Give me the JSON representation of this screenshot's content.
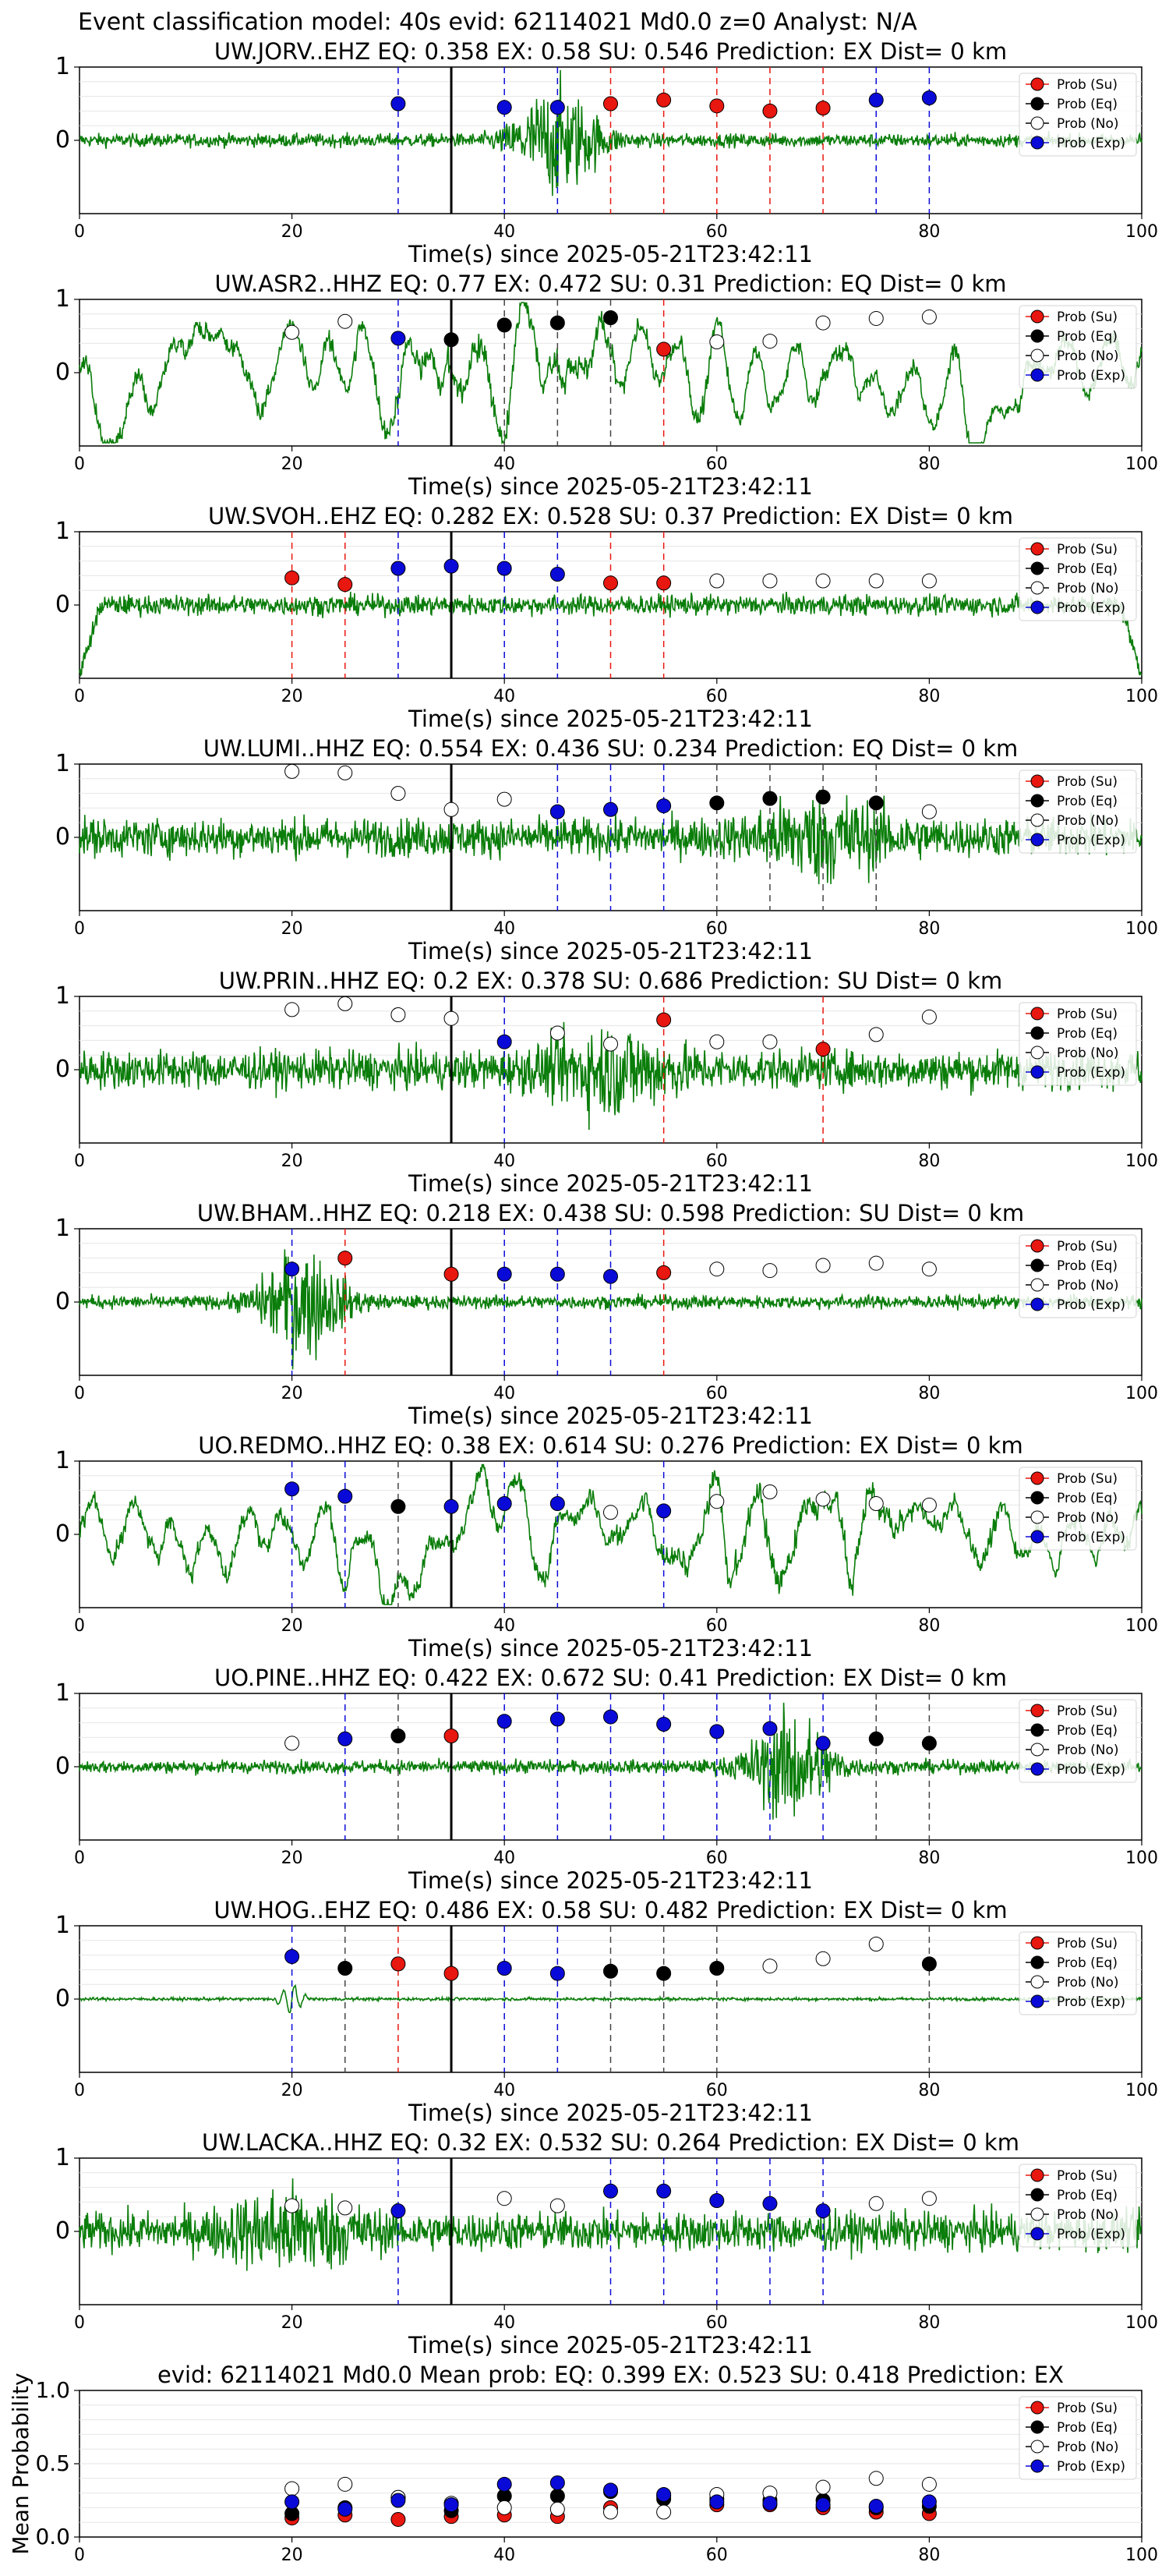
{
  "figure_title": "Event classification model: 40s evid: 62114021 Md0.0 z=0 Analyst: N/A",
  "colors": {
    "su": "#e8170f",
    "eq": "#000000",
    "no": "#ffffff",
    "exp": "#0a0ad8",
    "waveform": "#0a7d0a",
    "origin_line": "#000000"
  },
  "legend_labels": [
    "Prob (Su)",
    "Prob (Eq)",
    "Prob (No)",
    "Prob (Exp)"
  ],
  "chart_data": [
    {
      "type": "scatter",
      "station": "UW.JORV..EHZ",
      "title": "UW.JORV..EHZ   EQ: 0.358  EX: 0.58  SU: 0.546   Prediction: EX    Dist= 0 km",
      "xlabel": "Time(s) since 2025-05-21T23:42:11",
      "xlim": [
        0,
        100
      ],
      "ylim": [
        -1,
        1
      ],
      "xticks": [
        "0",
        "20",
        "40",
        "60",
        "80",
        "100"
      ],
      "yticks": [
        "0",
        "1"
      ],
      "legend_position": "upper-right",
      "origin_time": 35,
      "waveform_style": "burst",
      "burst_center": 45,
      "points": [
        {
          "t": 30,
          "p": 0.5,
          "cls": "exp"
        },
        {
          "t": 40,
          "p": 0.45,
          "cls": "exp"
        },
        {
          "t": 45,
          "p": 0.45,
          "cls": "exp"
        },
        {
          "t": 50,
          "p": 0.5,
          "cls": "su"
        },
        {
          "t": 55,
          "p": 0.55,
          "cls": "su"
        },
        {
          "t": 60,
          "p": 0.47,
          "cls": "su"
        },
        {
          "t": 65,
          "p": 0.4,
          "cls": "su"
        },
        {
          "t": 70,
          "p": 0.44,
          "cls": "su"
        },
        {
          "t": 75,
          "p": 0.55,
          "cls": "exp"
        },
        {
          "t": 80,
          "p": 0.58,
          "cls": "exp"
        }
      ]
    },
    {
      "type": "scatter",
      "station": "UW.ASR2..HHZ",
      "title": "UW.ASR2..HHZ   EQ: 0.77  EX: 0.472  SU: 0.31   Prediction: EQ    Dist= 0 km",
      "xlabel": "Time(s) since 2025-05-21T23:42:11",
      "xlim": [
        0,
        100
      ],
      "ylim": [
        -1,
        1
      ],
      "xticks": [
        "0",
        "20",
        "40",
        "60",
        "80",
        "100"
      ],
      "yticks": [
        "0",
        "1"
      ],
      "legend_position": "upper-right",
      "origin_time": 35,
      "waveform_style": "lowfreq",
      "burst_center": 38,
      "points": [
        {
          "t": 20,
          "p": 0.55,
          "cls": "no"
        },
        {
          "t": 25,
          "p": 0.7,
          "cls": "no"
        },
        {
          "t": 30,
          "p": 0.47,
          "cls": "exp"
        },
        {
          "t": 35,
          "p": 0.45,
          "cls": "eq"
        },
        {
          "t": 40,
          "p": 0.65,
          "cls": "eq"
        },
        {
          "t": 45,
          "p": 0.68,
          "cls": "eq"
        },
        {
          "t": 50,
          "p": 0.75,
          "cls": "eq"
        },
        {
          "t": 55,
          "p": 0.32,
          "cls": "su"
        },
        {
          "t": 60,
          "p": 0.42,
          "cls": "no"
        },
        {
          "t": 65,
          "p": 0.43,
          "cls": "no"
        },
        {
          "t": 70,
          "p": 0.68,
          "cls": "no"
        },
        {
          "t": 75,
          "p": 0.74,
          "cls": "no"
        },
        {
          "t": 80,
          "p": 0.76,
          "cls": "no"
        }
      ]
    },
    {
      "type": "scatter",
      "station": "UW.SVOH..EHZ",
      "title": "UW.SVOH..EHZ   EQ: 0.282  EX: 0.528  SU: 0.37   Prediction: EX    Dist= 0 km",
      "xlabel": "Time(s) since 2025-05-21T23:42:11",
      "xlim": [
        0,
        100
      ],
      "ylim": [
        -1,
        1
      ],
      "xticks": [
        "0",
        "20",
        "40",
        "60",
        "80",
        "100"
      ],
      "yticks": [
        "0",
        "1"
      ],
      "legend_position": "upper-right",
      "origin_time": 35,
      "waveform_style": "low",
      "burst_center": 45,
      "points": [
        {
          "t": 20,
          "p": 0.37,
          "cls": "su"
        },
        {
          "t": 25,
          "p": 0.28,
          "cls": "su"
        },
        {
          "t": 30,
          "p": 0.5,
          "cls": "exp"
        },
        {
          "t": 35,
          "p": 0.53,
          "cls": "exp"
        },
        {
          "t": 40,
          "p": 0.5,
          "cls": "exp"
        },
        {
          "t": 45,
          "p": 0.42,
          "cls": "exp"
        },
        {
          "t": 50,
          "p": 0.3,
          "cls": "su"
        },
        {
          "t": 55,
          "p": 0.3,
          "cls": "su"
        },
        {
          "t": 60,
          "p": 0.33,
          "cls": "no"
        },
        {
          "t": 65,
          "p": 0.33,
          "cls": "no"
        },
        {
          "t": 70,
          "p": 0.33,
          "cls": "no"
        },
        {
          "t": 75,
          "p": 0.33,
          "cls": "no"
        },
        {
          "t": 80,
          "p": 0.33,
          "cls": "no"
        }
      ]
    },
    {
      "type": "scatter",
      "station": "UW.LUMI..HHZ",
      "title": "UW.LUMI..HHZ   EQ: 0.554  EX: 0.436  SU: 0.234   Prediction: EQ    Dist= 0 km",
      "xlabel": "Time(s) since 2025-05-21T23:42:11",
      "xlim": [
        0,
        100
      ],
      "ylim": [
        -1,
        1
      ],
      "xticks": [
        "0",
        "20",
        "40",
        "60",
        "80",
        "100"
      ],
      "yticks": [
        "0",
        "1"
      ],
      "legend_position": "upper-right",
      "origin_time": 35,
      "waveform_style": "noisy",
      "burst_center": 70,
      "points": [
        {
          "t": 20,
          "p": 0.9,
          "cls": "no"
        },
        {
          "t": 25,
          "p": 0.88,
          "cls": "no"
        },
        {
          "t": 30,
          "p": 0.6,
          "cls": "no"
        },
        {
          "t": 35,
          "p": 0.38,
          "cls": "no"
        },
        {
          "t": 40,
          "p": 0.52,
          "cls": "no"
        },
        {
          "t": 45,
          "p": 0.35,
          "cls": "exp"
        },
        {
          "t": 50,
          "p": 0.38,
          "cls": "exp"
        },
        {
          "t": 55,
          "p": 0.43,
          "cls": "exp"
        },
        {
          "t": 60,
          "p": 0.47,
          "cls": "eq"
        },
        {
          "t": 65,
          "p": 0.53,
          "cls": "eq"
        },
        {
          "t": 70,
          "p": 0.55,
          "cls": "eq"
        },
        {
          "t": 75,
          "p": 0.47,
          "cls": "eq"
        },
        {
          "t": 80,
          "p": 0.35,
          "cls": "no"
        }
      ]
    },
    {
      "type": "scatter",
      "station": "UW.PRIN..HHZ",
      "title": "UW.PRIN..HHZ   EQ: 0.2  EX: 0.378  SU: 0.686   Prediction: SU    Dist= 0 km",
      "xlabel": "Time(s) since 2025-05-21T23:42:11",
      "xlim": [
        0,
        100
      ],
      "ylim": [
        -1,
        1
      ],
      "xticks": [
        "0",
        "20",
        "40",
        "60",
        "80",
        "100"
      ],
      "yticks": [
        "0",
        "1"
      ],
      "legend_position": "upper-right",
      "origin_time": 35,
      "waveform_style": "noisy",
      "burst_center": 50,
      "points": [
        {
          "t": 20,
          "p": 0.82,
          "cls": "no"
        },
        {
          "t": 25,
          "p": 0.9,
          "cls": "no"
        },
        {
          "t": 30,
          "p": 0.75,
          "cls": "no"
        },
        {
          "t": 35,
          "p": 0.7,
          "cls": "no"
        },
        {
          "t": 40,
          "p": 0.38,
          "cls": "exp"
        },
        {
          "t": 45,
          "p": 0.5,
          "cls": "no"
        },
        {
          "t": 50,
          "p": 0.35,
          "cls": "no"
        },
        {
          "t": 55,
          "p": 0.68,
          "cls": "su"
        },
        {
          "t": 60,
          "p": 0.38,
          "cls": "no"
        },
        {
          "t": 65,
          "p": 0.38,
          "cls": "no"
        },
        {
          "t": 70,
          "p": 0.28,
          "cls": "su"
        },
        {
          "t": 75,
          "p": 0.48,
          "cls": "no"
        },
        {
          "t": 80,
          "p": 0.72,
          "cls": "no"
        }
      ]
    },
    {
      "type": "scatter",
      "station": "UW.BHAM..HHZ",
      "title": "UW.BHAM..HHZ   EQ: 0.218  EX: 0.438  SU: 0.598   Prediction: SU    Dist= 0 km",
      "xlabel": "Time(s) since 2025-05-21T23:42:11",
      "xlim": [
        0,
        100
      ],
      "ylim": [
        -1,
        1
      ],
      "xticks": [
        "0",
        "20",
        "40",
        "60",
        "80",
        "100"
      ],
      "yticks": [
        "0",
        "1"
      ],
      "legend_position": "upper-right",
      "origin_time": 35,
      "waveform_style": "burst",
      "burst_center": 21,
      "points": [
        {
          "t": 20,
          "p": 0.45,
          "cls": "exp"
        },
        {
          "t": 25,
          "p": 0.6,
          "cls": "su"
        },
        {
          "t": 35,
          "p": 0.38,
          "cls": "su"
        },
        {
          "t": 40,
          "p": 0.38,
          "cls": "exp"
        },
        {
          "t": 45,
          "p": 0.38,
          "cls": "exp"
        },
        {
          "t": 50,
          "p": 0.35,
          "cls": "exp"
        },
        {
          "t": 55,
          "p": 0.4,
          "cls": "su"
        },
        {
          "t": 60,
          "p": 0.45,
          "cls": "no"
        },
        {
          "t": 65,
          "p": 0.43,
          "cls": "no"
        },
        {
          "t": 70,
          "p": 0.5,
          "cls": "no"
        },
        {
          "t": 75,
          "p": 0.53,
          "cls": "no"
        },
        {
          "t": 80,
          "p": 0.45,
          "cls": "no"
        }
      ]
    },
    {
      "type": "scatter",
      "station": "UO.REDMO..HHZ",
      "title": "UO.REDMO..HHZ   EQ: 0.38  EX: 0.614  SU: 0.276   Prediction: EX    Dist= 0 km",
      "xlabel": "Time(s) since 2025-05-21T23:42:11",
      "xlim": [
        0,
        100
      ],
      "ylim": [
        -1,
        1
      ],
      "xticks": [
        "0",
        "20",
        "40",
        "60",
        "80",
        "100"
      ],
      "yticks": [
        "0",
        "1"
      ],
      "legend_position": "upper-right",
      "origin_time": 35,
      "waveform_style": "lowfreq",
      "burst_center": 65,
      "points": [
        {
          "t": 20,
          "p": 0.62,
          "cls": "exp"
        },
        {
          "t": 25,
          "p": 0.52,
          "cls": "exp"
        },
        {
          "t": 30,
          "p": 0.38,
          "cls": "eq"
        },
        {
          "t": 35,
          "p": 0.38,
          "cls": "exp"
        },
        {
          "t": 40,
          "p": 0.42,
          "cls": "exp"
        },
        {
          "t": 45,
          "p": 0.42,
          "cls": "exp"
        },
        {
          "t": 50,
          "p": 0.3,
          "cls": "no"
        },
        {
          "t": 55,
          "p": 0.32,
          "cls": "exp"
        },
        {
          "t": 60,
          "p": 0.45,
          "cls": "no"
        },
        {
          "t": 65,
          "p": 0.58,
          "cls": "no"
        },
        {
          "t": 70,
          "p": 0.48,
          "cls": "no"
        },
        {
          "t": 75,
          "p": 0.42,
          "cls": "no"
        },
        {
          "t": 80,
          "p": 0.4,
          "cls": "no"
        }
      ]
    },
    {
      "type": "scatter",
      "station": "UO.PINE..HHZ",
      "title": "UO.PINE..HHZ   EQ: 0.422  EX: 0.672  SU: 0.41   Prediction: EX    Dist= 0 km",
      "xlabel": "Time(s) since 2025-05-21T23:42:11",
      "xlim": [
        0,
        100
      ],
      "ylim": [
        -1,
        1
      ],
      "xticks": [
        "0",
        "20",
        "40",
        "60",
        "80",
        "100"
      ],
      "yticks": [
        "0",
        "1"
      ],
      "legend_position": "upper-right",
      "origin_time": 35,
      "waveform_style": "burst",
      "burst_center": 67,
      "points": [
        {
          "t": 20,
          "p": 0.32,
          "cls": "no"
        },
        {
          "t": 25,
          "p": 0.38,
          "cls": "exp"
        },
        {
          "t": 30,
          "p": 0.42,
          "cls": "eq"
        },
        {
          "t": 35,
          "p": 0.42,
          "cls": "su"
        },
        {
          "t": 40,
          "p": 0.62,
          "cls": "exp"
        },
        {
          "t": 45,
          "p": 0.65,
          "cls": "exp"
        },
        {
          "t": 50,
          "p": 0.68,
          "cls": "exp"
        },
        {
          "t": 55,
          "p": 0.58,
          "cls": "exp"
        },
        {
          "t": 60,
          "p": 0.48,
          "cls": "exp"
        },
        {
          "t": 65,
          "p": 0.52,
          "cls": "exp"
        },
        {
          "t": 70,
          "p": 0.32,
          "cls": "exp"
        },
        {
          "t": 75,
          "p": 0.38,
          "cls": "eq"
        },
        {
          "t": 80,
          "p": 0.32,
          "cls": "eq"
        }
      ]
    },
    {
      "type": "scatter",
      "station": "UW.HOG..EHZ",
      "title": "UW.HOG..EHZ   EQ: 0.486  EX: 0.58  SU: 0.482   Prediction: EX    Dist= 0 km",
      "xlabel": "Time(s) since 2025-05-21T23:42:11",
      "xlim": [
        0,
        100
      ],
      "ylim": [
        -1,
        1
      ],
      "xticks": [
        "0",
        "20",
        "40",
        "60",
        "80",
        "100"
      ],
      "yticks": [
        "0",
        "1"
      ],
      "legend_position": "upper-right",
      "origin_time": 35,
      "waveform_style": "flat",
      "burst_center": 20,
      "points": [
        {
          "t": 20,
          "p": 0.58,
          "cls": "exp"
        },
        {
          "t": 25,
          "p": 0.42,
          "cls": "eq"
        },
        {
          "t": 30,
          "p": 0.48,
          "cls": "su"
        },
        {
          "t": 35,
          "p": 0.35,
          "cls": "su"
        },
        {
          "t": 40,
          "p": 0.42,
          "cls": "exp"
        },
        {
          "t": 45,
          "p": 0.35,
          "cls": "exp"
        },
        {
          "t": 50,
          "p": 0.38,
          "cls": "eq"
        },
        {
          "t": 55,
          "p": 0.35,
          "cls": "eq"
        },
        {
          "t": 60,
          "p": 0.42,
          "cls": "eq"
        },
        {
          "t": 65,
          "p": 0.45,
          "cls": "no"
        },
        {
          "t": 70,
          "p": 0.55,
          "cls": "no"
        },
        {
          "t": 75,
          "p": 0.75,
          "cls": "no"
        },
        {
          "t": 80,
          "p": 0.48,
          "cls": "eq"
        }
      ]
    },
    {
      "type": "scatter",
      "station": "UW.LACKA..HHZ",
      "title": "UW.LACKA..HHZ   EQ: 0.32  EX: 0.532  SU: 0.264   Prediction: EX    Dist= 0 km",
      "xlabel": "Time(s) since 2025-05-21T23:42:11",
      "xlim": [
        0,
        100
      ],
      "ylim": [
        -1,
        1
      ],
      "xticks": [
        "0",
        "20",
        "40",
        "60",
        "80",
        "100"
      ],
      "yticks": [
        "0",
        "1"
      ],
      "legend_position": "upper-right",
      "origin_time": 35,
      "waveform_style": "noisy",
      "burst_center": 20,
      "points": [
        {
          "t": 20,
          "p": 0.35,
          "cls": "no"
        },
        {
          "t": 25,
          "p": 0.32,
          "cls": "no"
        },
        {
          "t": 30,
          "p": 0.28,
          "cls": "exp"
        },
        {
          "t": 40,
          "p": 0.45,
          "cls": "no"
        },
        {
          "t": 45,
          "p": 0.35,
          "cls": "no"
        },
        {
          "t": 50,
          "p": 0.55,
          "cls": "exp"
        },
        {
          "t": 55,
          "p": 0.55,
          "cls": "exp"
        },
        {
          "t": 60,
          "p": 0.42,
          "cls": "exp"
        },
        {
          "t": 65,
          "p": 0.38,
          "cls": "exp"
        },
        {
          "t": 70,
          "p": 0.28,
          "cls": "exp"
        },
        {
          "t": 75,
          "p": 0.38,
          "cls": "no"
        },
        {
          "t": 80,
          "p": 0.45,
          "cls": "no"
        }
      ]
    },
    {
      "type": "scatter",
      "station": "summary",
      "title": "evid: 62114021  Md0.0   Mean prob:   EQ: 0.399  EX: 0.523  SU: 0.418   Prediction: EX",
      "xlabel": "",
      "ylabel": "Mean Probability",
      "xlim": [
        0,
        100
      ],
      "ylim": [
        0,
        1
      ],
      "xticks": [
        "0",
        "20",
        "40",
        "60",
        "80",
        "100"
      ],
      "yticks": [
        "0.0",
        "0.5",
        "1.0"
      ],
      "legend_position": "upper-right",
      "times": [
        20,
        25,
        30,
        35,
        40,
        45,
        50,
        55,
        60,
        65,
        70,
        75,
        80
      ],
      "series": [
        {
          "name": "Prob (Su)",
          "cls": "su",
          "values": [
            0.13,
            0.15,
            0.12,
            0.14,
            0.15,
            0.14,
            0.2,
            0.28,
            0.22,
            0.22,
            0.2,
            0.17,
            0.16
          ]
        },
        {
          "name": "Prob (Eq)",
          "cls": "eq",
          "values": [
            0.16,
            0.2,
            0.27,
            0.18,
            0.28,
            0.28,
            0.31,
            0.26,
            0.26,
            0.25,
            0.25,
            0.2,
            0.21
          ]
        },
        {
          "name": "Prob (No)",
          "cls": "no",
          "values": [
            0.33,
            0.36,
            0.27,
            0.23,
            0.2,
            0.19,
            0.17,
            0.17,
            0.29,
            0.3,
            0.34,
            0.4,
            0.36
          ]
        },
        {
          "name": "Prob (Exp)",
          "cls": "exp",
          "values": [
            0.24,
            0.19,
            0.25,
            0.22,
            0.36,
            0.37,
            0.32,
            0.29,
            0.24,
            0.23,
            0.22,
            0.21,
            0.24
          ]
        }
      ]
    }
  ]
}
